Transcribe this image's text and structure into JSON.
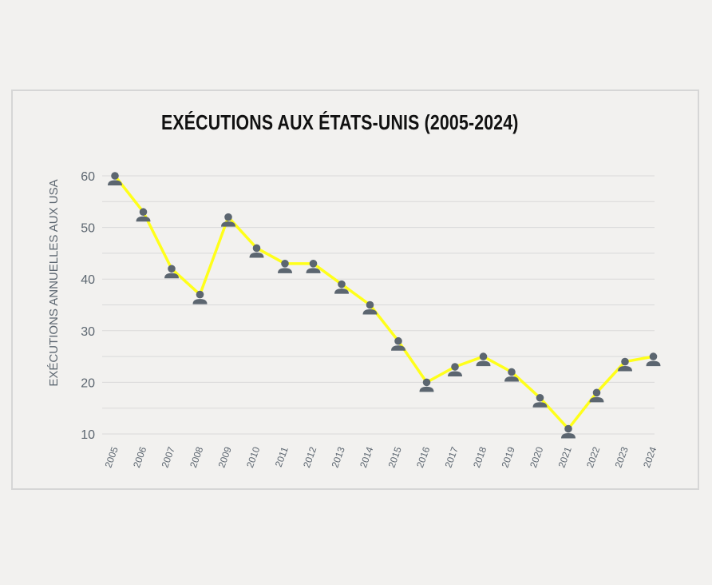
{
  "chart_data": {
    "type": "line",
    "title": "EXÉCUTIONS AUX ÉTATS-UNIS (2005-2024)",
    "xlabel": "",
    "ylabel": "EXÉCUTIONS ANNUELLES AUX USA",
    "ylim": [
      10,
      60
    ],
    "yticks": [
      10,
      20,
      30,
      40,
      50,
      60
    ],
    "grid": true,
    "categories": [
      "2005",
      "2006",
      "2007",
      "2008",
      "2009",
      "2010",
      "2011",
      "2012",
      "2013",
      "2014",
      "2015",
      "2016",
      "2017",
      "2018",
      "2019",
      "2020",
      "2021",
      "2022",
      "2023",
      "2024"
    ],
    "series": [
      {
        "name": "Exécutions",
        "values": [
          60,
          53,
          42,
          37,
          52,
          46,
          43,
          43,
          39,
          35,
          28,
          20,
          23,
          25,
          22,
          17,
          11,
          18,
          24,
          25
        ]
      }
    ],
    "marker": "person-icon"
  },
  "colors": {
    "line": "#ffff1a",
    "marker": "#5c6670",
    "grid": "#d9d9d9",
    "text": "#5c6670",
    "title": "#111111",
    "background": "#f2f1ef",
    "border": "#d6d6d6"
  }
}
